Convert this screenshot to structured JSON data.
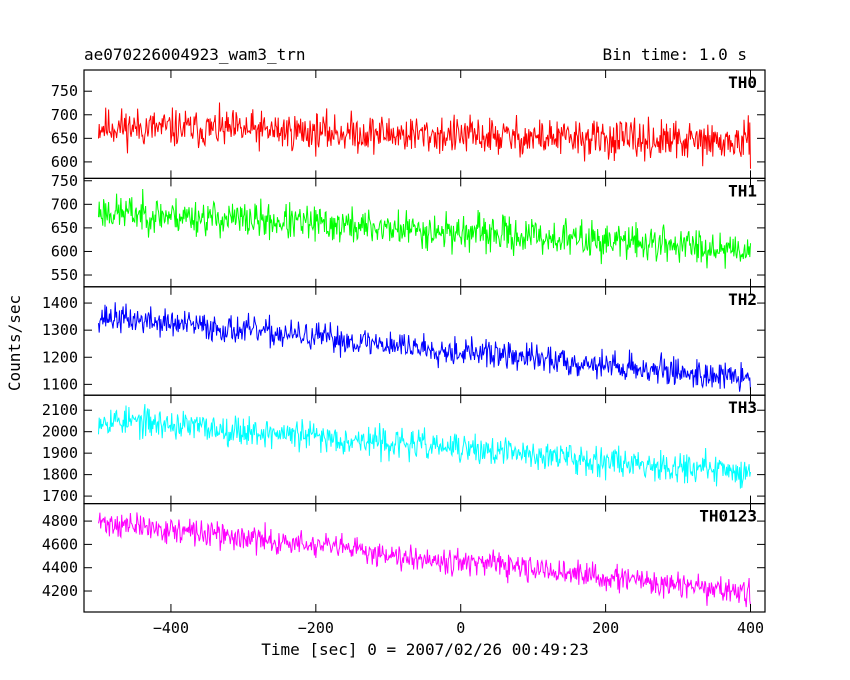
{
  "header": {
    "title": "ae070226004923_wam3_trn",
    "bin_time": "Bin time: 1.0 s"
  },
  "chart_data": {
    "type": "line",
    "xlabel": "Time [sec] 0 = 2007/02/26 00:49:23",
    "ylabel": "Counts/sec",
    "xlim": [
      -520,
      420
    ],
    "x_ticks": [
      -400,
      -200,
      0,
      200,
      400
    ],
    "x_step": 1,
    "panels": [
      {
        "name": "TH0",
        "color": "#ff0000",
        "ylim": [
          565,
          795
        ],
        "y_ticks": [
          600,
          650,
          700,
          750
        ],
        "trend": {
          "x": [
            -500,
            400
          ],
          "y": [
            675,
            640
          ]
        },
        "noise": 35,
        "seed": 11
      },
      {
        "name": "TH1",
        "color": "#00ff00",
        "ylim": [
          525,
          755
        ],
        "y_ticks": [
          550,
          600,
          650,
          700,
          750
        ],
        "trend": {
          "x": [
            -500,
            400
          ],
          "y": [
            685,
            605
          ]
        },
        "noise": 33,
        "seed": 23
      },
      {
        "name": "TH2",
        "color": "#0000ff",
        "ylim": [
          1060,
          1460
        ],
        "y_ticks": [
          1100,
          1200,
          1300,
          1400
        ],
        "trend": {
          "x": [
            -500,
            400
          ],
          "y": [
            1350,
            1120
          ]
        },
        "noise": 45,
        "seed": 37
      },
      {
        "name": "TH3",
        "color": "#00ffff",
        "ylim": [
          1665,
          2170
        ],
        "y_ticks": [
          1700,
          1800,
          1900,
          2000,
          2100
        ],
        "trend": {
          "x": [
            -500,
            400
          ],
          "y": [
            2060,
            1810
          ]
        },
        "noise": 60,
        "seed": 53
      },
      {
        "name": "TH0123",
        "color": "#ff00ff",
        "ylim": [
          4020,
          4950
        ],
        "y_ticks": [
          4200,
          4400,
          4600,
          4800
        ],
        "trend": {
          "x": [
            -500,
            400
          ],
          "y": [
            4790,
            4180
          ]
        },
        "noise": 95,
        "seed": 71
      }
    ]
  }
}
